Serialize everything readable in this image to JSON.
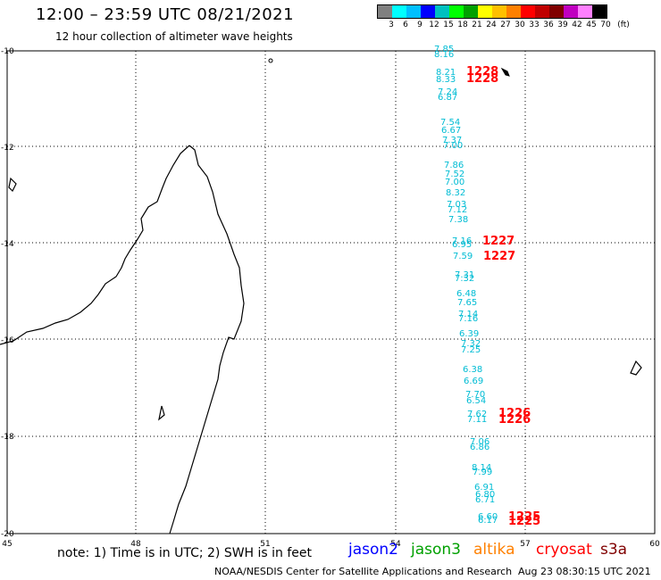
{
  "header": {
    "title": "12:00 – 23:59 UTC 08/21/2021",
    "subtitle": "12 hour collection of altimeter wave heights"
  },
  "color_scale": {
    "unit": "(ft)",
    "labels": [
      "3",
      "6",
      "9",
      "12",
      "15",
      "18",
      "21",
      "24",
      "27",
      "30",
      "33",
      "36",
      "39",
      "42",
      "45",
      "70"
    ],
    "colors": [
      "#808080",
      "#00ffff",
      "#00bfff",
      "#0000ff",
      "#00c0c0",
      "#00ff00",
      "#00a000",
      "#ffff00",
      "#ffc000",
      "#ff8000",
      "#ff0000",
      "#c00000",
      "#800000",
      "#c000c0",
      "#ff80ff",
      "#000000"
    ]
  },
  "axes": {
    "lat_labels": [
      "-10",
      "-12",
      "-14",
      "-16",
      "-18",
      "-20"
    ],
    "lon_labels": [
      "45",
      "48",
      "51",
      "54",
      "57",
      "60"
    ]
  },
  "wave_heights": [
    "7.85",
    "8.16",
    "8.21",
    "8.33",
    "7.24",
    "6.87",
    "7.54",
    "6.67",
    "7.37",
    "7.00",
    "7.86",
    "7.52",
    "7.00",
    "8.32",
    "7.03",
    "7.12",
    "7.38",
    "7.16",
    "6.95",
    "7.59",
    "7.31",
    "7.32",
    "6.48",
    "7.65",
    "7.14",
    "7.16",
    "6.39",
    "7.32",
    "7.25",
    "6.38",
    "6.69",
    "7.70",
    "6.54",
    "7.62",
    "7.11",
    "7.06",
    "6.86",
    "8.14",
    "7.99",
    "6.91",
    "6.80",
    "6.71",
    "6.60",
    "6.17"
  ],
  "pass_times": [
    "1228",
    "1228",
    "1227",
    "1227",
    "1226",
    "1226",
    "1225",
    "1225"
  ],
  "footer": {
    "note": "note: 1) Time is in UTC; 2) SWH is in feet",
    "satellites": [
      {
        "name": "jason2",
        "color": "#0000ff"
      },
      {
        "name": "jason3",
        "color": "#00a000"
      },
      {
        "name": "altika",
        "color": "#ff8000"
      },
      {
        "name": "cryosat",
        "color": "#ff0000"
      },
      {
        "name": "s3a",
        "color": "#800000"
      }
    ],
    "credit": "NOAA/NESDIS Center for Satellite Applications and Research",
    "timestamp": "Aug 23 08:30:15 UTC 2021"
  }
}
